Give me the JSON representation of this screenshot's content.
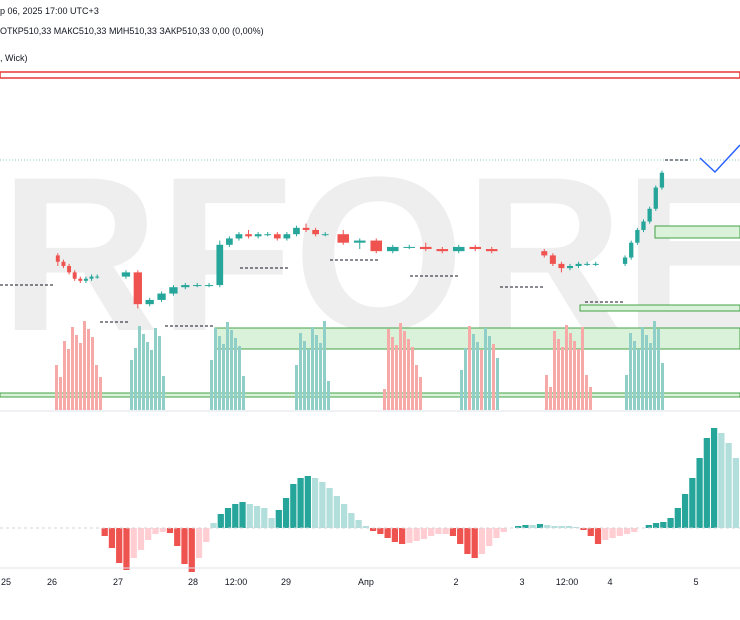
{
  "header": {
    "line1": "р 06, 2025 17:00 UTC+3",
    "line2": "ОТКР510,33  МАКС510,33  МИН510,33  ЗАКР510,33  0,00 (0,00%)",
    "line3": ", Wick)"
  },
  "watermark": {
    "text": "RFOREX"
  },
  "colors": {
    "up": "#26a69a",
    "down": "#ef5350",
    "vol_up": "#8fcfc8",
    "vol_down": "#f7a9a7",
    "zone_fill": "#d9f2d9",
    "zone_line": "#43a047",
    "resistance": "#e53935",
    "projection": "#2962ff"
  },
  "chart_data": {
    "type": "candlestick",
    "x_tick_labels": [
      "25",
      "26",
      "27",
      "28",
      "12:00",
      "29",
      "Апр",
      "2",
      "3",
      "12:00",
      "4",
      "5"
    ],
    "candles_ohlc_relative": [
      [
        0.55,
        0.56,
        0.5,
        0.52
      ],
      [
        0.52,
        0.53,
        0.49,
        0.5
      ],
      [
        0.5,
        0.51,
        0.46,
        0.47
      ],
      [
        0.47,
        0.48,
        0.43,
        0.44
      ],
      [
        0.44,
        0.45,
        0.42,
        0.43
      ],
      [
        0.43,
        0.45,
        0.42,
        0.44
      ],
      [
        0.44,
        0.46,
        0.43,
        0.45
      ],
      [
        0.45,
        0.46,
        0.44,
        0.45
      ],
      [
        0.45,
        0.48,
        0.44,
        0.47
      ],
      [
        0.47,
        0.48,
        0.3,
        0.32
      ],
      [
        0.32,
        0.35,
        0.31,
        0.34
      ],
      [
        0.34,
        0.38,
        0.33,
        0.37
      ],
      [
        0.37,
        0.41,
        0.36,
        0.4
      ],
      [
        0.4,
        0.42,
        0.39,
        0.41
      ],
      [
        0.41,
        0.42,
        0.4,
        0.41
      ],
      [
        0.41,
        0.42,
        0.4,
        0.41
      ],
      [
        0.41,
        0.62,
        0.4,
        0.6
      ],
      [
        0.6,
        0.64,
        0.59,
        0.63
      ],
      [
        0.63,
        0.66,
        0.62,
        0.65
      ],
      [
        0.65,
        0.67,
        0.63,
        0.64
      ],
      [
        0.64,
        0.66,
        0.63,
        0.65
      ],
      [
        0.65,
        0.66,
        0.64,
        0.65
      ],
      [
        0.65,
        0.66,
        0.62,
        0.63
      ],
      [
        0.63,
        0.66,
        0.62,
        0.65
      ],
      [
        0.65,
        0.69,
        0.64,
        0.68
      ],
      [
        0.68,
        0.7,
        0.66,
        0.67
      ],
      [
        0.67,
        0.68,
        0.64,
        0.65
      ],
      [
        0.65,
        0.66,
        0.64,
        0.65
      ],
      [
        0.65,
        0.67,
        0.6,
        0.61
      ],
      [
        0.61,
        0.63,
        0.58,
        0.62
      ],
      [
        0.62,
        0.63,
        0.56,
        0.57
      ],
      [
        0.57,
        0.6,
        0.56,
        0.59
      ],
      [
        0.59,
        0.6,
        0.58,
        0.59
      ],
      [
        0.59,
        0.61,
        0.57,
        0.58
      ],
      [
        0.58,
        0.59,
        0.56,
        0.57
      ],
      [
        0.57,
        0.6,
        0.56,
        0.59
      ],
      [
        0.59,
        0.6,
        0.57,
        0.58
      ],
      [
        0.58,
        0.59,
        0.56,
        0.57
      ],
      [
        0.57,
        0.58,
        0.54,
        0.55
      ],
      [
        0.55,
        0.56,
        0.5,
        0.51
      ],
      [
        0.51,
        0.52,
        0.47,
        0.49
      ],
      [
        0.49,
        0.51,
        0.48,
        0.5
      ],
      [
        0.5,
        0.52,
        0.49,
        0.51
      ],
      [
        0.51,
        0.52,
        0.5,
        0.51
      ],
      [
        0.51,
        0.52,
        0.5,
        0.51
      ],
      [
        0.51,
        0.55,
        0.5,
        0.54
      ],
      [
        0.54,
        0.62,
        0.53,
        0.61
      ],
      [
        0.61,
        0.68,
        0.6,
        0.67
      ],
      [
        0.67,
        0.72,
        0.66,
        0.71
      ],
      [
        0.71,
        0.78,
        0.7,
        0.77
      ],
      [
        0.77,
        0.88,
        0.76,
        0.87
      ],
      [
        0.87,
        0.95,
        0.86,
        0.94
      ]
    ],
    "histogram_relative": [
      0,
      0,
      0,
      0,
      0,
      0,
      0,
      0,
      0,
      0,
      0,
      0,
      0,
      0,
      -0.08,
      -0.2,
      -0.35,
      -0.42,
      -0.3,
      -0.22,
      -0.12,
      -0.06,
      -0.04,
      -0.05,
      -0.18,
      -0.36,
      -0.44,
      -0.3,
      -0.14,
      0.05,
      0.14,
      0.2,
      0.24,
      0.26,
      0.24,
      0.22,
      0.2,
      0.1,
      0.18,
      0.3,
      0.44,
      0.5,
      0.52,
      0.5,
      0.46,
      0.4,
      0.32,
      0.24,
      0.15,
      0.08,
      0.02,
      -0.03,
      -0.06,
      -0.1,
      -0.14,
      -0.16,
      -0.15,
      -0.13,
      -0.11,
      -0.08,
      -0.06,
      -0.06,
      -0.08,
      -0.16,
      -0.26,
      -0.3,
      -0.26,
      -0.18,
      -0.1,
      -0.04,
      0.0,
      0.02,
      0.03,
      0.03,
      0.04,
      0.03,
      0.02,
      0.02,
      0.02,
      0.01,
      -0.02,
      -0.08,
      -0.16,
      -0.12,
      -0.1,
      -0.08,
      -0.06,
      -0.04,
      0.0,
      0.03,
      0.05,
      0.06,
      0.1,
      0.2,
      0.34,
      0.5,
      0.7,
      0.9,
      1.0,
      0.95,
      0.85,
      0.7
    ]
  }
}
